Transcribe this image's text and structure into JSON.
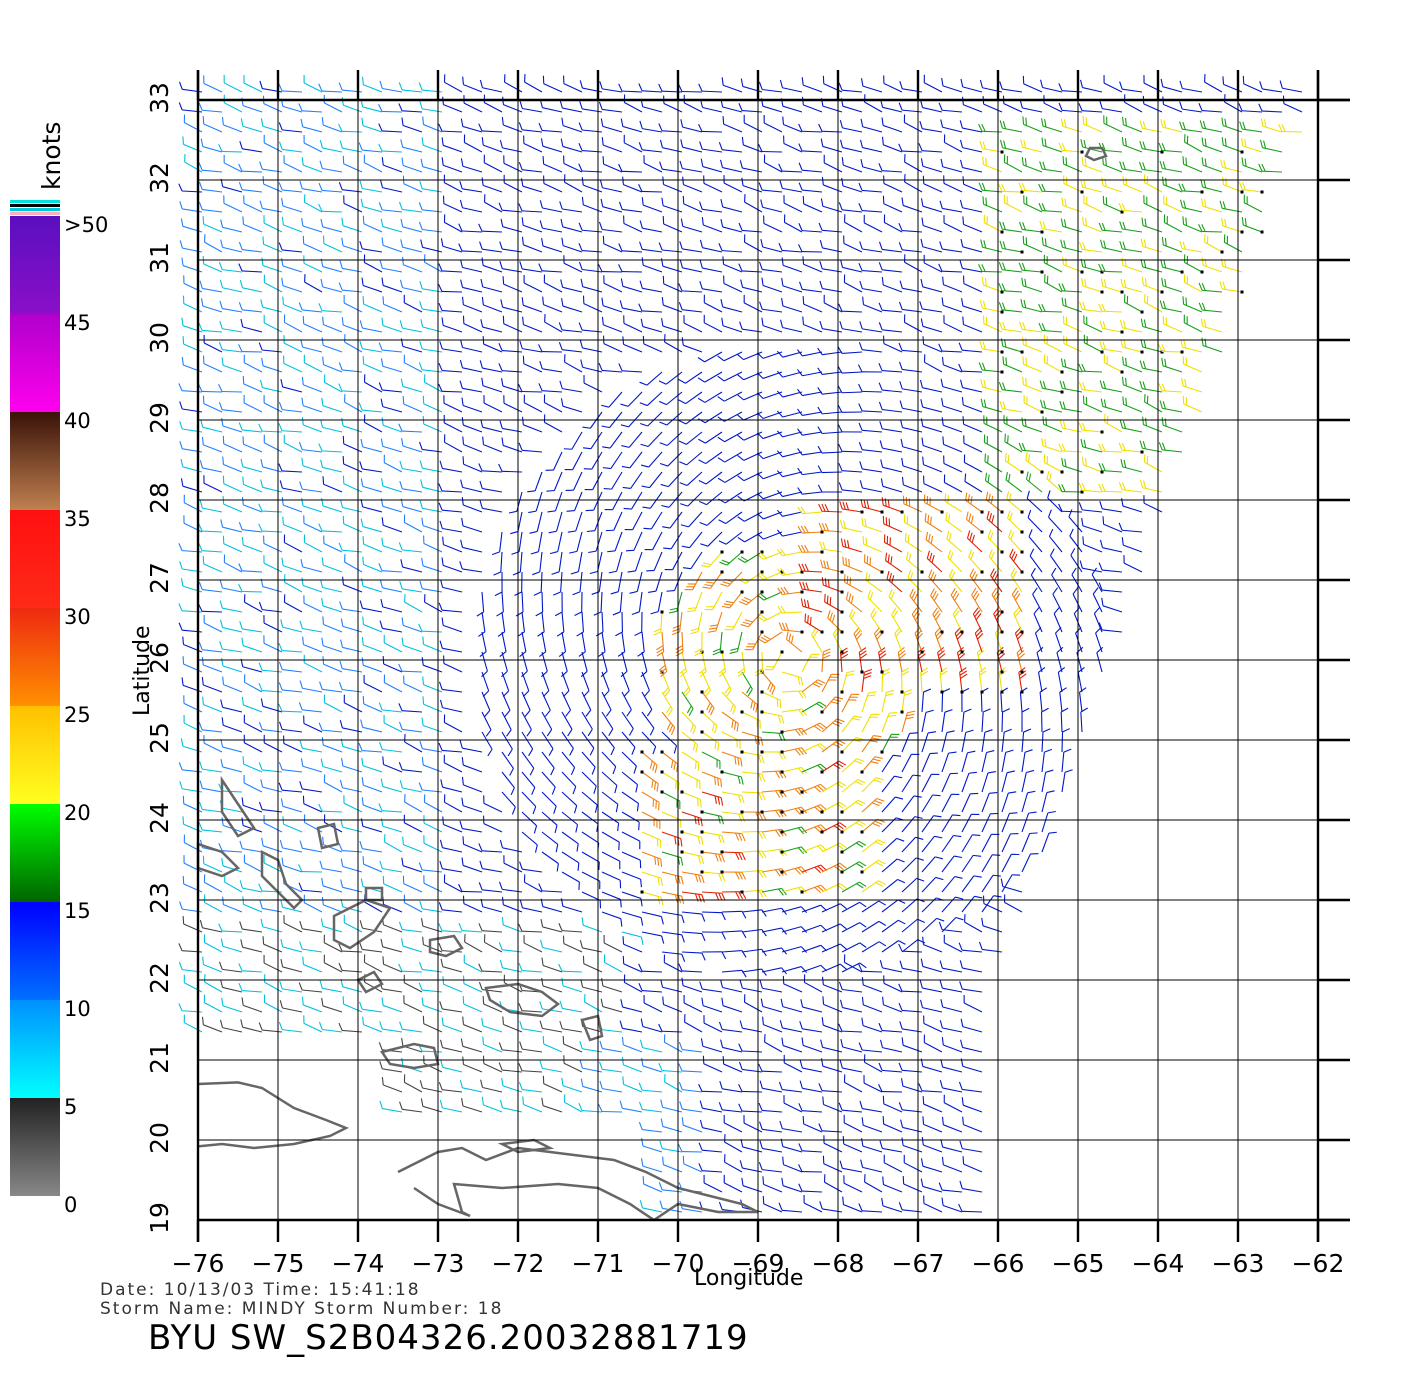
{
  "map": {
    "x_axis_label": "Longitude",
    "y_axis_label": "Latitude",
    "lon_range": [
      -76,
      -62
    ],
    "lat_range": [
      19,
      33
    ],
    "lon_ticks": [
      -76,
      -75,
      -74,
      -73,
      -72,
      -71,
      -70,
      -69,
      -68,
      -67,
      -66,
      -65,
      -64,
      -63,
      -62
    ],
    "lat_ticks": [
      19,
      20,
      21,
      22,
      23,
      24,
      25,
      26,
      27,
      28,
      29,
      30,
      31,
      32,
      33
    ],
    "lon_tick_labels": [
      "−76",
      "−75",
      "−74",
      "−73",
      "−72",
      "−71",
      "−70",
      "−69",
      "−68",
      "−67",
      "−66",
      "−65",
      "−64",
      "−63",
      "−62"
    ],
    "lat_tick_labels": [
      "19",
      "20",
      "21",
      "22",
      "23",
      "24",
      "25",
      "26",
      "27",
      "28",
      "29",
      "30",
      "31",
      "32",
      "33"
    ],
    "grid": true,
    "content": "scatterometer wind barbs over ocean with land outlines",
    "storm_center_approx": {
      "lon": -68.6,
      "lat": 26.0
    }
  },
  "colorbar": {
    "unit_label": "knots",
    "tick_labels": [
      ">50",
      "45",
      "40",
      "35",
      "30",
      "25",
      "20",
      "15",
      "10",
      "5",
      "0"
    ],
    "ticks": [
      50,
      45,
      40,
      35,
      30,
      25,
      20,
      15,
      10,
      5,
      0
    ],
    "bands": [
      {
        "from": 45,
        "to": 50,
        "colors": [
          "#5a0fc0",
          "#8a0fc8"
        ]
      },
      {
        "from": 40,
        "to": 45,
        "colors": [
          "#b000cc",
          "#ff00ee"
        ]
      },
      {
        "from": 35,
        "to": 40,
        "colors": [
          "#3a1208",
          "#c08050"
        ]
      },
      {
        "from": 30,
        "to": 35,
        "colors": [
          "#ff1010",
          "#ff2a18"
        ]
      },
      {
        "from": 25,
        "to": 30,
        "colors": [
          "#ee2a10",
          "#ff9000"
        ]
      },
      {
        "from": 20,
        "to": 25,
        "colors": [
          "#ffc000",
          "#ffff20"
        ]
      },
      {
        "from": 15,
        "to": 20,
        "colors": [
          "#00ff00",
          "#006400"
        ]
      },
      {
        "from": 10,
        "to": 15,
        "colors": [
          "#0000ff",
          "#0070ff"
        ]
      },
      {
        "from": 5,
        "to": 10,
        "colors": [
          "#0090ff",
          "#00ffff"
        ]
      },
      {
        "from": 0,
        "to": 5,
        "colors": [
          "#222222",
          "#888888"
        ]
      }
    ],
    "wind_colors": {
      "calm": "#444444",
      "cyan": "#00c0e0",
      "lightblue": "#2080ff",
      "blue": "#0018c8",
      "green": "#18a018",
      "yellow": "#f0e000",
      "orange": "#f08010",
      "red": "#e02000"
    }
  },
  "info": {
    "line1": "Date: 10/13/03   Time: 15:41:18",
    "line2": "Storm Name: MINDY   Storm Number: 18",
    "title": "BYU SW_S2B04326.20032881719"
  }
}
